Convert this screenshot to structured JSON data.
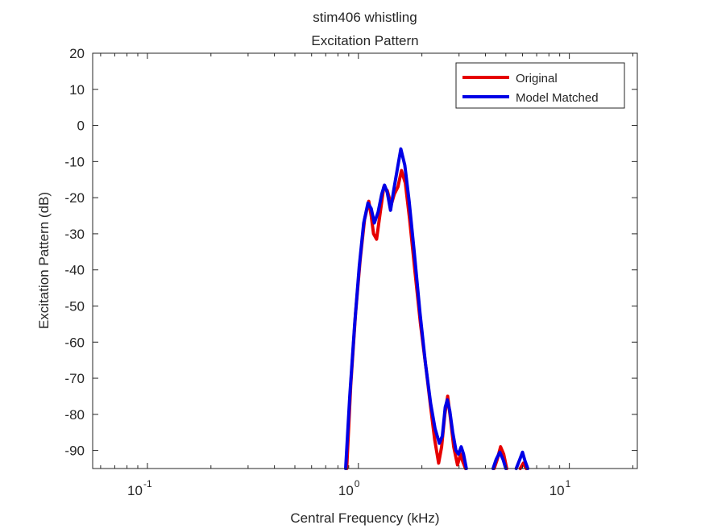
{
  "chart_data": {
    "type": "line",
    "title": "stim406 whistling",
    "subtitle": "Excitation Pattern",
    "xlabel": "Central Frequency (kHz)",
    "ylabel": "Excitation Pattern (dB)",
    "xscale": "log",
    "xlim": [
      0.055,
      21
    ],
    "ylim": [
      -95,
      20
    ],
    "yticks": [
      20,
      10,
      0,
      -10,
      -20,
      -30,
      -40,
      -50,
      -60,
      -70,
      -80,
      -90
    ],
    "xticks": [
      {
        "value": 0.1,
        "base": "10",
        "exp": "-1"
      },
      {
        "value": 1,
        "base": "10",
        "exp": "0"
      },
      {
        "value": 10,
        "base": "10",
        "exp": "1"
      }
    ],
    "legend_position": "top-right",
    "grid": false,
    "series": [
      {
        "name": "Original",
        "color": "#e60000",
        "points": [
          [
            0.88,
            -95
          ],
          [
            0.92,
            -72
          ],
          [
            0.97,
            -52
          ],
          [
            1.02,
            -37
          ],
          [
            1.07,
            -26
          ],
          [
            1.12,
            -21
          ],
          [
            1.15,
            -25
          ],
          [
            1.18,
            -30
          ],
          [
            1.22,
            -31.5
          ],
          [
            1.27,
            -24
          ],
          [
            1.32,
            -17
          ],
          [
            1.37,
            -18
          ],
          [
            1.43,
            -22
          ],
          [
            1.48,
            -19
          ],
          [
            1.54,
            -17
          ],
          [
            1.6,
            -12.5
          ],
          [
            1.67,
            -16
          ],
          [
            1.75,
            -26
          ],
          [
            1.85,
            -40
          ],
          [
            1.97,
            -55
          ],
          [
            2.1,
            -68
          ],
          [
            2.2,
            -78
          ],
          [
            2.3,
            -87
          ],
          [
            2.4,
            -93.5
          ],
          [
            2.48,
            -89
          ],
          [
            2.57,
            -80
          ],
          [
            2.65,
            -75
          ],
          [
            2.73,
            -81
          ],
          [
            2.83,
            -89
          ],
          [
            2.95,
            -94
          ],
          [
            3.05,
            -91
          ],
          [
            3.12,
            -93
          ],
          [
            3.22,
            -95
          ]
        ]
      },
      {
        "name": "Original",
        "color": "#e60000",
        "points": [
          [
            4.4,
            -95
          ],
          [
            4.55,
            -92.5
          ],
          [
            4.72,
            -89
          ],
          [
            4.88,
            -91
          ],
          [
            5.05,
            -95
          ]
        ]
      },
      {
        "name": "Original",
        "color": "#e60000",
        "points": [
          [
            5.85,
            -95
          ],
          [
            6.05,
            -93.5
          ],
          [
            6.25,
            -95
          ]
        ]
      },
      {
        "name": "Model Matched",
        "color": "#0000e6",
        "points": [
          [
            0.87,
            -95
          ],
          [
            0.91,
            -75
          ],
          [
            0.96,
            -55
          ],
          [
            1.01,
            -39
          ],
          [
            1.06,
            -27
          ],
          [
            1.11,
            -21.5
          ],
          [
            1.15,
            -23
          ],
          [
            1.19,
            -27
          ],
          [
            1.24,
            -24
          ],
          [
            1.29,
            -19
          ],
          [
            1.33,
            -16.5
          ],
          [
            1.37,
            -18.5
          ],
          [
            1.42,
            -23.5
          ],
          [
            1.47,
            -18
          ],
          [
            1.53,
            -12
          ],
          [
            1.59,
            -6.5
          ],
          [
            1.66,
            -11
          ],
          [
            1.74,
            -21
          ],
          [
            1.84,
            -35
          ],
          [
            1.96,
            -52
          ],
          [
            2.08,
            -66
          ],
          [
            2.2,
            -77
          ],
          [
            2.31,
            -84
          ],
          [
            2.42,
            -88
          ],
          [
            2.5,
            -86
          ],
          [
            2.58,
            -78
          ],
          [
            2.64,
            -76
          ],
          [
            2.71,
            -79
          ],
          [
            2.8,
            -85
          ],
          [
            2.9,
            -90
          ],
          [
            2.98,
            -91
          ],
          [
            3.07,
            -89
          ],
          [
            3.15,
            -91
          ],
          [
            3.25,
            -95
          ]
        ]
      },
      {
        "name": "Model Matched",
        "color": "#0000e6",
        "points": [
          [
            4.35,
            -95
          ],
          [
            4.5,
            -92.5
          ],
          [
            4.68,
            -90.5
          ],
          [
            4.85,
            -92.5
          ],
          [
            5.0,
            -95
          ]
        ]
      },
      {
        "name": "Model Matched",
        "color": "#0000e6",
        "points": [
          [
            5.6,
            -95
          ],
          [
            5.82,
            -92.5
          ],
          [
            6.0,
            -90.5
          ],
          [
            6.17,
            -93
          ],
          [
            6.35,
            -95
          ]
        ]
      }
    ],
    "legend": [
      {
        "label": "Original",
        "color": "#e60000"
      },
      {
        "label": "Model Matched",
        "color": "#0000e6"
      }
    ]
  }
}
